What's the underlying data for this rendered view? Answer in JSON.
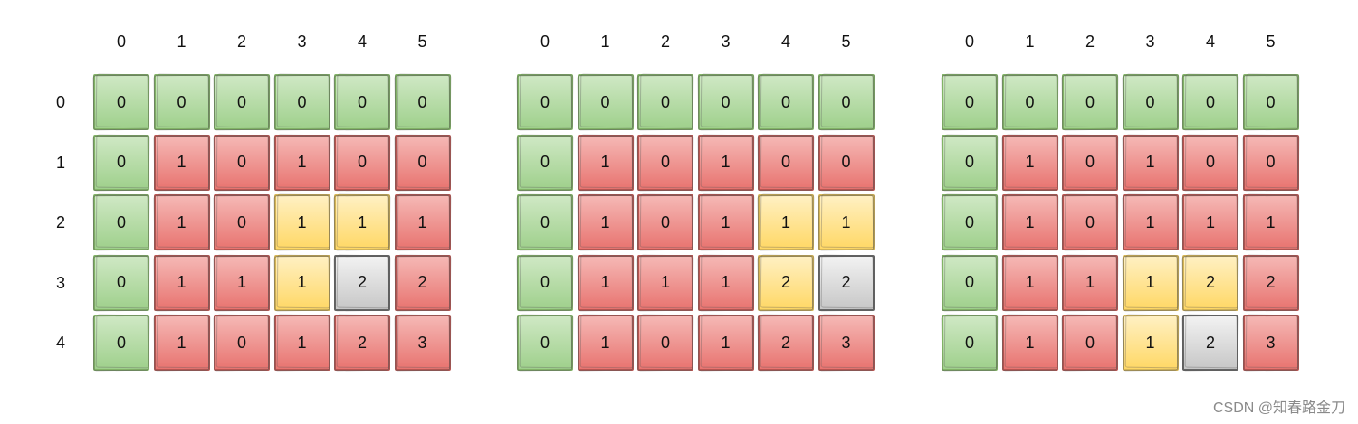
{
  "colors": {
    "green": "#9fd08c",
    "red": "#e87470",
    "yellow": "#ffd866",
    "gray": "#c7c7c7"
  },
  "grids": [
    {
      "col_labels": [
        "0",
        "1",
        "2",
        "3",
        "4",
        "5"
      ],
      "row_labels": [
        "0",
        "1",
        "2",
        "3",
        "4"
      ],
      "values": [
        [
          "0",
          "0",
          "0",
          "0",
          "0",
          "0"
        ],
        [
          "0",
          "1",
          "0",
          "1",
          "0",
          "0"
        ],
        [
          "0",
          "1",
          "0",
          "1",
          "1",
          "1"
        ],
        [
          "0",
          "1",
          "1",
          "1",
          "2",
          "2"
        ],
        [
          "0",
          "1",
          "0",
          "1",
          "2",
          "3"
        ]
      ],
      "colors": [
        [
          "green",
          "green",
          "green",
          "green",
          "green",
          "green"
        ],
        [
          "green",
          "red",
          "red",
          "red",
          "red",
          "red"
        ],
        [
          "green",
          "red",
          "red",
          "yellow",
          "yellow",
          "red"
        ],
        [
          "green",
          "red",
          "red",
          "yellow",
          "gray",
          "red"
        ],
        [
          "green",
          "red",
          "red",
          "red",
          "red",
          "red"
        ]
      ]
    },
    {
      "col_labels": [
        "0",
        "1",
        "2",
        "3",
        "4",
        "5"
      ],
      "row_labels": [],
      "values": [
        [
          "0",
          "0",
          "0",
          "0",
          "0",
          "0"
        ],
        [
          "0",
          "1",
          "0",
          "1",
          "0",
          "0"
        ],
        [
          "0",
          "1",
          "0",
          "1",
          "1",
          "1"
        ],
        [
          "0",
          "1",
          "1",
          "1",
          "2",
          "2"
        ],
        [
          "0",
          "1",
          "0",
          "1",
          "2",
          "3"
        ]
      ],
      "colors": [
        [
          "green",
          "green",
          "green",
          "green",
          "green",
          "green"
        ],
        [
          "green",
          "red",
          "red",
          "red",
          "red",
          "red"
        ],
        [
          "green",
          "red",
          "red",
          "red",
          "yellow",
          "yellow"
        ],
        [
          "green",
          "red",
          "red",
          "red",
          "yellow",
          "gray"
        ],
        [
          "green",
          "red",
          "red",
          "red",
          "red",
          "red"
        ]
      ]
    },
    {
      "col_labels": [
        "0",
        "1",
        "2",
        "3",
        "4",
        "5"
      ],
      "row_labels": [],
      "values": [
        [
          "0",
          "0",
          "0",
          "0",
          "0",
          "0"
        ],
        [
          "0",
          "1",
          "0",
          "1",
          "0",
          "0"
        ],
        [
          "0",
          "1",
          "0",
          "1",
          "1",
          "1"
        ],
        [
          "0",
          "1",
          "1",
          "1",
          "2",
          "2"
        ],
        [
          "0",
          "1",
          "0",
          "1",
          "2",
          "3"
        ]
      ],
      "colors": [
        [
          "green",
          "green",
          "green",
          "green",
          "green",
          "green"
        ],
        [
          "green",
          "red",
          "red",
          "red",
          "red",
          "red"
        ],
        [
          "green",
          "red",
          "red",
          "red",
          "red",
          "red"
        ],
        [
          "green",
          "red",
          "red",
          "yellow",
          "yellow",
          "red"
        ],
        [
          "green",
          "red",
          "red",
          "yellow",
          "gray",
          "red"
        ]
      ]
    }
  ],
  "watermark": "CSDN @知春路金刀"
}
